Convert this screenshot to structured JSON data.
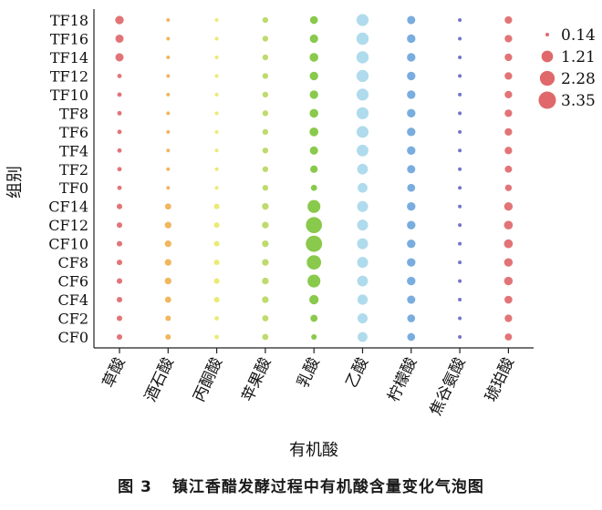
{
  "caption": {
    "figure_number": "图 3",
    "text": "镇江香醋发酵过程中有机酸含量变化气泡图"
  },
  "chart_data": {
    "type": "scatter",
    "xlabel": "有机酸",
    "ylabel": "组别",
    "categories": [
      "草酸",
      "酒石酸",
      "丙酮酸",
      "苹果酸",
      "乳酸",
      "乙酸",
      "柠檬酸",
      "焦谷氨酸",
      "琥珀酸"
    ],
    "colors": [
      "#e0686b",
      "#f0b050",
      "#e8e868",
      "#b8d860",
      "#7fc43c",
      "#a8d8ec",
      "#6ea6dc",
      "#6a68c8",
      "#e0686b"
    ],
    "groups": [
      "TF18",
      "TF16",
      "TF14",
      "TF12",
      "TF10",
      "TF8",
      "TF6",
      "TF4",
      "TF2",
      "TF0",
      "CF14",
      "CF12",
      "CF10",
      "CF8",
      "CF6",
      "CF4",
      "CF2",
      "CF0"
    ],
    "values": [
      [
        0.55,
        0.14,
        0.12,
        0.22,
        0.45,
        1.35,
        0.5,
        0.1,
        0.4
      ],
      [
        0.5,
        0.14,
        0.1,
        0.22,
        0.52,
        1.4,
        0.55,
        0.1,
        0.4
      ],
      [
        0.5,
        0.14,
        0.1,
        0.22,
        0.58,
        1.4,
        0.55,
        0.1,
        0.4
      ],
      [
        0.15,
        0.14,
        0.1,
        0.22,
        0.55,
        1.35,
        0.55,
        0.1,
        0.4
      ],
      [
        0.15,
        0.14,
        0.1,
        0.22,
        0.55,
        1.35,
        0.55,
        0.1,
        0.4
      ],
      [
        0.15,
        0.14,
        0.1,
        0.22,
        0.58,
        1.35,
        0.55,
        0.1,
        0.4
      ],
      [
        0.15,
        0.14,
        0.1,
        0.22,
        0.6,
        1.3,
        0.55,
        0.1,
        0.4
      ],
      [
        0.15,
        0.14,
        0.1,
        0.22,
        0.5,
        1.25,
        0.55,
        0.1,
        0.4
      ],
      [
        0.15,
        0.12,
        0.1,
        0.22,
        0.4,
        1.0,
        0.5,
        0.1,
        0.35
      ],
      [
        0.15,
        0.1,
        0.1,
        0.22,
        0.25,
        0.8,
        0.45,
        0.1,
        0.3
      ],
      [
        0.2,
        0.25,
        0.2,
        0.3,
        1.6,
        1.05,
        0.55,
        0.1,
        0.55
      ],
      [
        0.2,
        0.3,
        0.2,
        0.3,
        2.8,
        1.05,
        0.55,
        0.1,
        0.6
      ],
      [
        0.2,
        0.3,
        0.2,
        0.3,
        2.9,
        1.05,
        0.55,
        0.1,
        0.6
      ],
      [
        0.2,
        0.3,
        0.2,
        0.3,
        2.1,
        1.05,
        0.55,
        0.1,
        0.55
      ],
      [
        0.2,
        0.3,
        0.2,
        0.3,
        1.6,
        1.0,
        0.55,
        0.1,
        0.55
      ],
      [
        0.2,
        0.25,
        0.2,
        0.3,
        0.7,
        0.9,
        0.5,
        0.1,
        0.45
      ],
      [
        0.2,
        0.2,
        0.15,
        0.25,
        0.35,
        0.85,
        0.45,
        0.1,
        0.4
      ],
      [
        0.2,
        0.2,
        0.15,
        0.25,
        0.2,
        0.8,
        0.45,
        0.1,
        0.35
      ]
    ],
    "legend": {
      "values": [
        0.14,
        1.21,
        2.28,
        3.35
      ],
      "labels": [
        "0.14",
        "1.21",
        "2.28",
        "3.35"
      ],
      "color": "#e0686b",
      "placement": "right"
    },
    "grid": false
  }
}
